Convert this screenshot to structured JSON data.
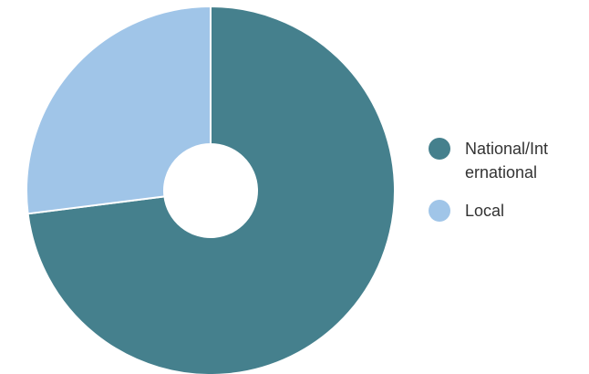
{
  "chart_data": {
    "type": "pie",
    "title": "",
    "categories": [
      "National/International",
      "Local"
    ],
    "values": [
      73,
      27
    ],
    "colors": [
      "#45808d",
      "#a0c5e8"
    ],
    "legend_position": "right",
    "donut": true
  }
}
